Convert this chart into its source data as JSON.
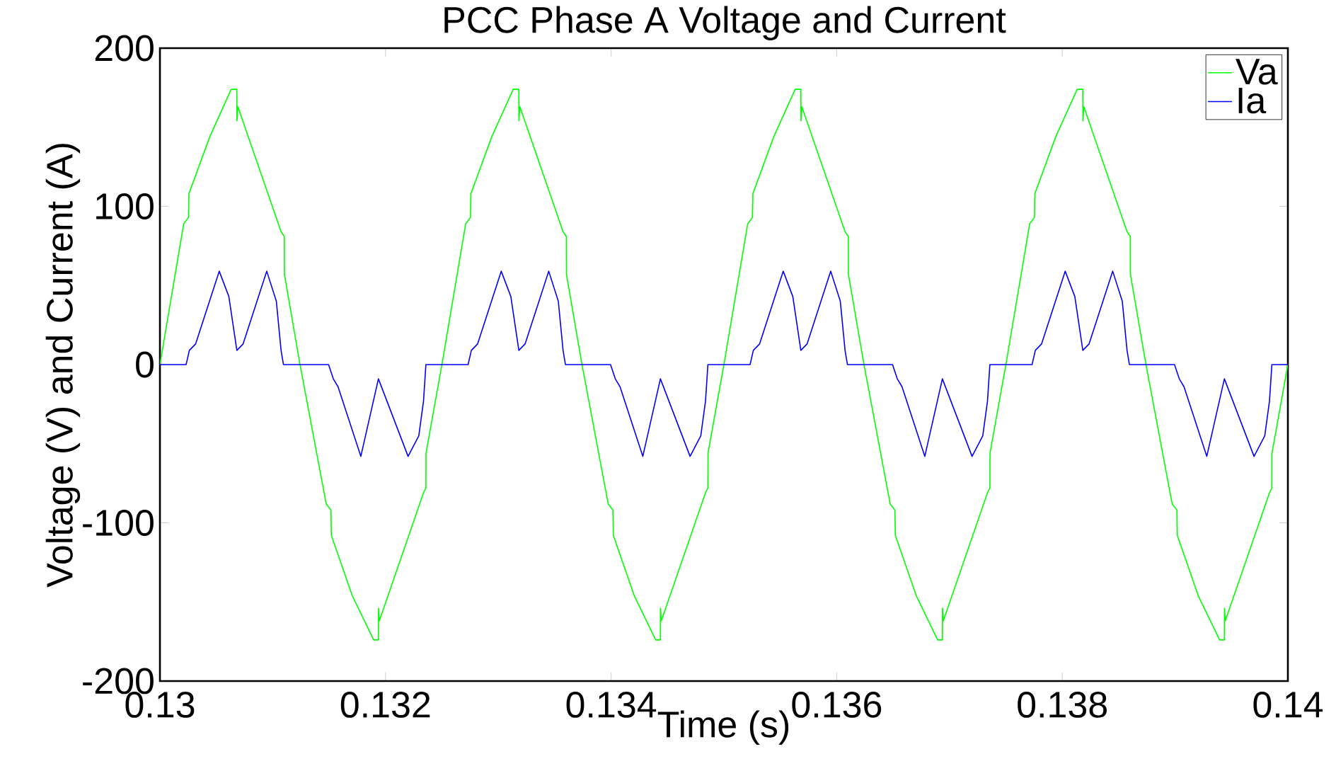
{
  "chart_data": {
    "type": "line",
    "title": "PCC Phase A Voltage and Current",
    "xlabel": "Time (s)",
    "ylabel": "Voltage (V) and Current (A)",
    "xlim": [
      0.13,
      0.14
    ],
    "ylim": [
      -200,
      200
    ],
    "xticks": [
      0.13,
      0.132,
      0.134,
      0.136,
      0.138,
      0.14
    ],
    "yticks": [
      -200,
      -100,
      0,
      100,
      200
    ],
    "legend": "top right",
    "grid": false,
    "marker": "none",
    "line_style": "solid",
    "series": [
      {
        "name": "Va",
        "color": "#00ff00",
        "x": [
          0.13,
          0.130211,
          0.130253,
          0.130257,
          0.130442,
          0.130632,
          0.130682,
          0.130683,
          0.130691,
          0.131074,
          0.131103,
          0.131104,
          0.131242,
          0.131474,
          0.131516,
          0.13152,
          0.131705,
          0.131895,
          0.131937,
          0.131938,
          0.131945,
          0.132337,
          0.132358,
          0.132359,
          0.1325,
          0.132711,
          0.132753,
          0.132757,
          0.132942,
          0.133132,
          0.133182,
          0.133183,
          0.133191,
          0.133574,
          0.133603,
          0.133604,
          0.133742,
          0.133974,
          0.134016,
          0.13402,
          0.134205,
          0.134395,
          0.134437,
          0.134438,
          0.134445,
          0.134837,
          0.134858,
          0.134859,
          0.135,
          0.135211,
          0.135253,
          0.135257,
          0.135442,
          0.135632,
          0.135682,
          0.135683,
          0.135691,
          0.136074,
          0.136103,
          0.136104,
          0.136242,
          0.136474,
          0.136516,
          0.13652,
          0.136705,
          0.136895,
          0.136937,
          0.136938,
          0.136945,
          0.137337,
          0.137358,
          0.137359,
          0.1375,
          0.137711,
          0.137753,
          0.137757,
          0.137942,
          0.138132,
          0.138182,
          0.138183,
          0.138191,
          0.138574,
          0.138603,
          0.138604,
          0.138742,
          0.138974,
          0.139016,
          0.13902,
          0.139205,
          0.139395,
          0.139437,
          0.139438,
          0.139445,
          0.139837,
          0.139858,
          0.139859,
          0.14
        ],
        "values": [
          0,
          89,
          93,
          108,
          144,
          174,
          174,
          154,
          163,
          84,
          81,
          57,
          0,
          -88,
          -92,
          -108,
          -146,
          -174,
          -174,
          -154,
          -162,
          -81,
          -78,
          -56,
          0,
          89,
          93,
          108,
          144,
          174,
          174,
          154,
          163,
          84,
          81,
          57,
          0,
          -88,
          -92,
          -108,
          -146,
          -174,
          -174,
          -154,
          -162,
          -81,
          -78,
          -56,
          0,
          89,
          93,
          108,
          144,
          174,
          174,
          154,
          163,
          84,
          81,
          57,
          0,
          -88,
          -92,
          -108,
          -146,
          -174,
          -174,
          -154,
          -162,
          -81,
          -78,
          -56,
          0,
          89,
          93,
          108,
          144,
          174,
          174,
          154,
          163,
          84,
          81,
          57,
          0,
          -88,
          -92,
          -108,
          -146,
          -174,
          -174,
          -154,
          -162,
          -81,
          -78,
          -56,
          0
        ]
      },
      {
        "name": "Ia",
        "color": "#0000ff",
        "x": [
          0.13,
          0.130232,
          0.130261,
          0.130316,
          0.130526,
          0.130611,
          0.130682,
          0.130737,
          0.130947,
          0.131032,
          0.131074,
          0.131095,
          0.131495,
          0.131537,
          0.131579,
          0.131781,
          0.131937,
          0.1322,
          0.132295,
          0.132337,
          0.132358,
          0.1325,
          0.132732,
          0.132761,
          0.132816,
          0.133026,
          0.133111,
          0.133182,
          0.133237,
          0.133447,
          0.133532,
          0.133574,
          0.133595,
          0.133995,
          0.134037,
          0.134079,
          0.134281,
          0.134437,
          0.1347,
          0.134795,
          0.134837,
          0.134858,
          0.135,
          0.135232,
          0.135261,
          0.135316,
          0.135526,
          0.135611,
          0.135682,
          0.135737,
          0.135947,
          0.136032,
          0.136074,
          0.136095,
          0.136495,
          0.136537,
          0.136579,
          0.136781,
          0.136937,
          0.1372,
          0.137295,
          0.137337,
          0.137358,
          0.1375,
          0.137732,
          0.137761,
          0.137816,
          0.138026,
          0.138111,
          0.138182,
          0.138237,
          0.138447,
          0.138532,
          0.138574,
          0.138595,
          0.138995,
          0.139037,
          0.139079,
          0.139281,
          0.139437,
          0.1397,
          0.139795,
          0.139837,
          0.139858,
          0.14
        ],
        "values": [
          0,
          0,
          9,
          13,
          59,
          43,
          9,
          13,
          59,
          40,
          9,
          0,
          0,
          -9,
          -14,
          -58,
          -9,
          -58,
          -45,
          -23,
          0,
          0,
          0,
          9,
          13,
          59,
          43,
          9,
          13,
          59,
          40,
          9,
          0,
          0,
          -9,
          -14,
          -58,
          -9,
          -58,
          -45,
          -23,
          0,
          0,
          0,
          9,
          13,
          59,
          43,
          9,
          13,
          59,
          40,
          9,
          0,
          0,
          -9,
          -14,
          -58,
          -9,
          -58,
          -45,
          -23,
          0,
          0,
          0,
          9,
          13,
          59,
          43,
          9,
          13,
          59,
          40,
          9,
          0,
          0,
          -9,
          -14,
          -58,
          -9,
          -58,
          -45,
          -23,
          0,
          0
        ]
      }
    ]
  }
}
